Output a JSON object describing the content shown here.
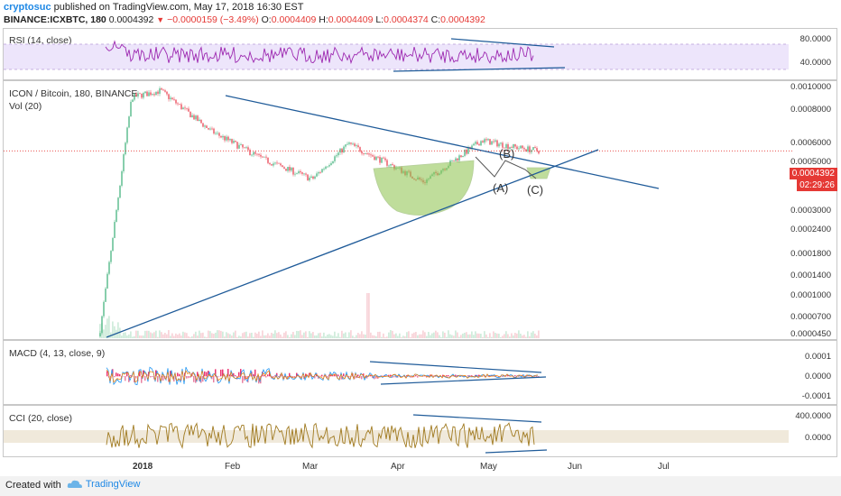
{
  "header": {
    "author": "cryptosuc",
    "published": "published on TradingView.com, May 17, 2018 16:30 EST",
    "symbol": "BINANCE:ICXBTC, 180",
    "last": "0.0004392",
    "change": "−0.0000159 (−3.49%)",
    "o_label": "O:",
    "o": "0.0004409",
    "h_label": "H:",
    "h": "0.0004409",
    "l_label": "L:",
    "l": "0.0004374",
    "c_label": "C:",
    "c": "0.0004392"
  },
  "panes": {
    "rsi": {
      "title": "RSI (14, close)",
      "ticks": [
        "80.0000",
        "40.0000"
      ]
    },
    "main": {
      "title": "ICON / Bitcoin, 180, BINANCE",
      "vol": "Vol (20)",
      "ticks": [
        "0.0010000",
        "0.0008000",
        "0.0006000",
        "0.0005000",
        "0.0003000",
        "0.0002400",
        "0.0001800",
        "0.0001400",
        "0.0001000",
        "0.0000700",
        "0.0000450"
      ],
      "price_tag": "0.0004392",
      "time_tag": "02:29:26",
      "annotations": [
        "(B)",
        "(A)",
        "(C)"
      ]
    },
    "macd": {
      "title": "MACD (4, 13, close, 9)",
      "ticks": [
        "0.0001",
        "0.0000",
        "-0.0001"
      ]
    },
    "cci": {
      "title": "CCI (20, close)",
      "ticks": [
        "400.0000",
        "0.0000"
      ]
    }
  },
  "x_axis": [
    "2018",
    "Feb",
    "Mar",
    "Apr",
    "May",
    "Jun",
    "Jul"
  ],
  "footer": {
    "created_with": "Created with",
    "brand": "TradingView"
  },
  "colors": {
    "price_line": "#e53935",
    "trendline": "#1f5b99",
    "rsi": "#9c27b0",
    "cci": "#a07a20",
    "cup": "#8bc34a",
    "macd_up": "#2196f3",
    "macd_down": "#e91e63"
  },
  "chart_data": {
    "type": "line",
    "title": "ICON / Bitcoin, 180, BINANCE",
    "x": [
      "2018-01-15",
      "2018-01-24",
      "2018-02-01",
      "2018-02-15",
      "2018-03-01",
      "2018-03-15",
      "2018-03-25",
      "2018-04-15",
      "2018-05-01",
      "2018-05-10",
      "2018-05-17"
    ],
    "series": [
      {
        "name": "ICXBTC",
        "values": [
          4.5e-05,
          0.00085,
          0.00092,
          0.00056,
          0.0004,
          0.00031,
          0.00048,
          0.0003,
          0.0005,
          0.00046,
          0.0004392
        ]
      }
    ],
    "ylim": [
      4.5e-05,
      0.001
    ],
    "y_scale": "log"
  }
}
